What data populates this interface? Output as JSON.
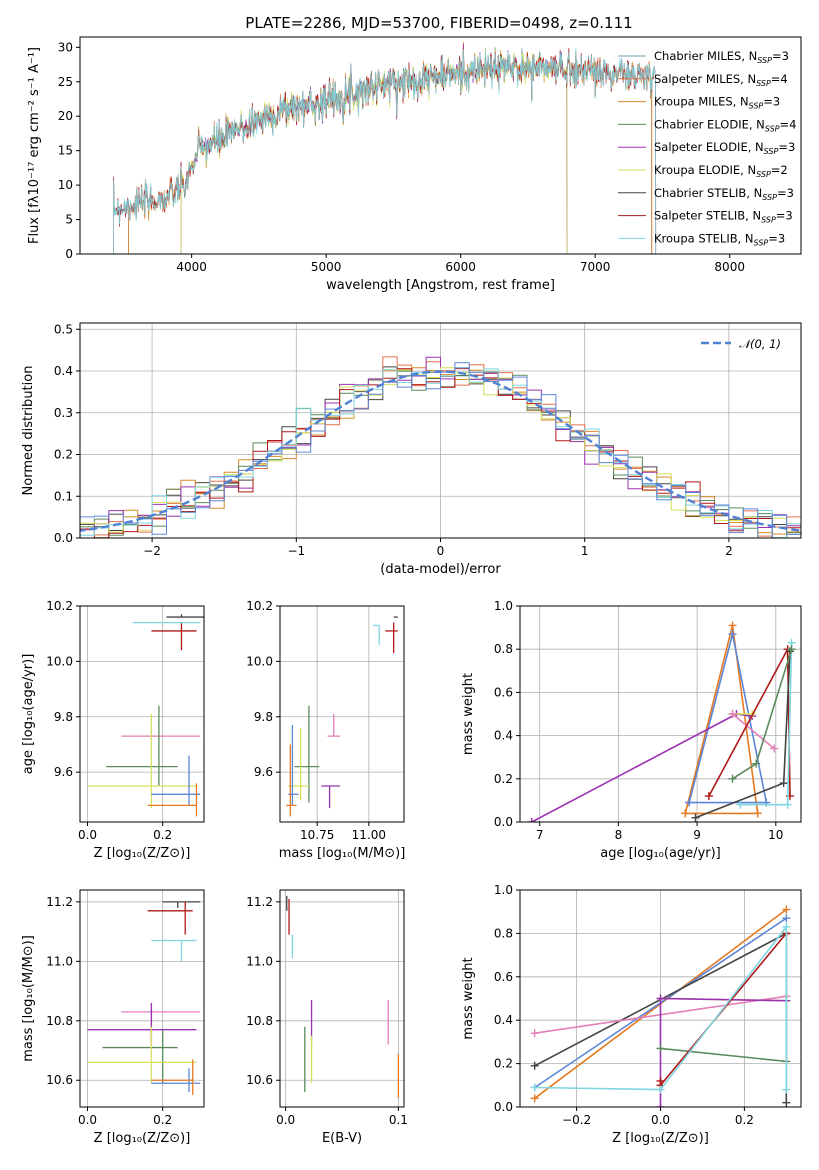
{
  "figure_title": "PLATE=2286, MJD=53700, FIBERID=0498, z=0.111",
  "colors": {
    "Chabrier MILES": "#6f9fb0",
    "Salpeter MILES": "#e4724f",
    "Kroupa MILES": "#d98a2b",
    "Chabrier ELODIE": "#5a8a5a",
    "Salpeter ELODIE": "#9b32b4",
    "Kroupa ELODIE": "#d6e05a",
    "Chabrier STELIB": "#444444",
    "Salpeter STELIB": "#b01818",
    "Kroupa STELIB": "#7fd6e0",
    "pink": "#e47fb8",
    "blue": "#5e86d6",
    "orange": "#e57a22",
    "gaussian": "#4f82d4"
  },
  "chart_data": [
    {
      "id": "spectrum",
      "type": "line",
      "title": "PLATE=2286, MJD=53700, FIBERID=0498, z=0.111",
      "xlabel": "wavelength [Angstrom, rest frame]",
      "ylabel": "Flux [fλ10⁻¹⁷ erg cm⁻² s⁻¹ A⁻¹]",
      "xlim": [
        3170,
        8530
      ],
      "ylim": [
        0,
        31.5
      ],
      "xticks": [
        4000,
        5000,
        6000,
        7000,
        8000
      ],
      "yticks": [
        0,
        5,
        10,
        15,
        20,
        25,
        30
      ],
      "grid": false,
      "legend_position": "right",
      "continuum": [
        [
          3400,
          6.5
        ],
        [
          3650,
          7.5
        ],
        [
          3800,
          8
        ],
        [
          3950,
          10
        ],
        [
          4050,
          15
        ],
        [
          4250,
          17
        ],
        [
          4450,
          19
        ],
        [
          4700,
          21
        ],
        [
          4950,
          22
        ],
        [
          5200,
          23.5
        ],
        [
          5400,
          24.5
        ],
        [
          5700,
          25.5
        ],
        [
          5900,
          26
        ],
        [
          6100,
          26.5
        ],
        [
          6300,
          27
        ],
        [
          6600,
          27
        ],
        [
          6900,
          26.8
        ],
        [
          7200,
          26
        ],
        [
          7450,
          25.5
        ]
      ],
      "legend": [
        {
          "label": "Chabrier MILES, N",
          "sub": "SSP",
          "eq": "=3",
          "color": "Chabrier MILES"
        },
        {
          "label": "Salpeter MILES, N",
          "sub": "SSP",
          "eq": "=4",
          "color": "Salpeter MILES"
        },
        {
          "label": "Kroupa MILES, N",
          "sub": "SSP",
          "eq": "=3",
          "color": "Kroupa MILES"
        },
        {
          "label": "Chabrier ELODIE, N",
          "sub": "SSP",
          "eq": "=4",
          "color": "Chabrier ELODIE"
        },
        {
          "label": "Salpeter ELODIE, N",
          "sub": "SSP",
          "eq": "=3",
          "color": "Salpeter ELODIE"
        },
        {
          "label": "Kroupa ELODIE, N",
          "sub": "SSP",
          "eq": "=2",
          "color": "Kroupa ELODIE"
        },
        {
          "label": "Chabrier STELIB, N",
          "sub": "SSP",
          "eq": "=3",
          "color": "Chabrier STELIB"
        },
        {
          "label": "Salpeter STELIB, N",
          "sub": "SSP",
          "eq": "=3",
          "color": "Salpeter STELIB"
        },
        {
          "label": "Kroupa STELIB, N",
          "sub": "SSP",
          "eq": "=3",
          "color": "Kroupa STELIB"
        }
      ]
    },
    {
      "id": "residuals",
      "type": "line",
      "xlabel": "(data-model)/error",
      "ylabel": "Normed distribution",
      "xlim": [
        -2.5,
        2.5
      ],
      "ylim": [
        0,
        0.515
      ],
      "xticks": [
        -2,
        -1,
        0,
        1,
        2
      ],
      "yticks": [
        0.0,
        0.1,
        0.2,
        0.3,
        0.4,
        0.5
      ],
      "grid": true,
      "legend_position": "top-right",
      "legend_label": "𝒩(0, 1)",
      "gaussian": {
        "mean": 0,
        "sigma": 1
      }
    },
    {
      "id": "age-vs-z",
      "type": "scatter",
      "xlabel": "Z [log₁₀(Z/Z⊙)]",
      "ylabel": "age  [log₁₀(age/yr)]",
      "xlim": [
        -0.02,
        0.31
      ],
      "ylim": [
        9.42,
        10.2
      ],
      "xticks": [
        0.0,
        0.2
      ],
      "yticks": [
        9.6,
        9.8,
        10.0,
        10.2
      ],
      "grid": true,
      "points": [
        {
          "x": 0.25,
          "y": 10.16,
          "xerr": [
            0.04,
            0.06
          ],
          "yerr": [
            0.0,
            0.01
          ],
          "color": "Chabrier STELIB"
        },
        {
          "x": 0.25,
          "y": 10.11,
          "xerr": [
            0.08,
            0.04
          ],
          "yerr": [
            0.07,
            0.03
          ],
          "color": "Salpeter STELIB"
        },
        {
          "x": 0.24,
          "y": 10.14,
          "xerr": [
            0.12,
            0.06
          ],
          "yerr": [
            0.0,
            0.0
          ],
          "color": "Kroupa STELIB"
        },
        {
          "x": 0.17,
          "y": 9.73,
          "xerr": [
            0.08,
            0.13
          ],
          "yerr": [
            0.0,
            0.0
          ],
          "color": "pink"
        },
        {
          "x": 0.19,
          "y": 9.62,
          "xerr": [
            0.14,
            0.05
          ],
          "yerr": [
            0.07,
            0.22
          ],
          "color": "Chabrier ELODIE"
        },
        {
          "x": 0.17,
          "y": 9.55,
          "xerr": [
            0.17,
            0.12
          ],
          "yerr": [
            0.08,
            0.26
          ],
          "color": "Kroupa ELODIE"
        },
        {
          "x": 0.27,
          "y": 9.52,
          "xerr": [
            0.1,
            0.03
          ],
          "yerr": [
            0.04,
            0.14
          ],
          "color": "blue"
        },
        {
          "x": 0.29,
          "y": 9.48,
          "xerr": [
            0.13,
            0.0
          ],
          "yerr": [
            0.04,
            0.08
          ],
          "color": "orange"
        }
      ]
    },
    {
      "id": "age-vs-mass",
      "type": "scatter",
      "xlabel": "mass [log₁₀(M/M⊙)]",
      "xlim": [
        10.57,
        11.17
      ],
      "ylim": [
        9.42,
        10.2
      ],
      "xticks": [
        10.75,
        11.0
      ],
      "yticks": [
        9.6,
        9.8,
        10.0,
        10.2
      ],
      "grid": true,
      "points": [
        {
          "x": 11.14,
          "y": 10.16,
          "xerr": [
            0.02,
            0.0
          ],
          "yerr": [
            0.0,
            0.0
          ],
          "color": "Chabrier STELIB"
        },
        {
          "x": 11.12,
          "y": 10.11,
          "xerr": [
            0.04,
            0.02
          ],
          "yerr": [
            0.08,
            0.03
          ],
          "color": "Salpeter STELIB"
        },
        {
          "x": 11.05,
          "y": 10.13,
          "xerr": [
            0.03,
            0.0
          ],
          "yerr": [
            0.07,
            0.0
          ],
          "color": "Kroupa STELIB"
        },
        {
          "x": 10.83,
          "y": 9.73,
          "xerr": [
            0.03,
            0.03
          ],
          "yerr": [
            0.0,
            0.08
          ],
          "color": "pink"
        },
        {
          "x": 10.81,
          "y": 9.55,
          "xerr": [
            0.04,
            0.05
          ],
          "yerr": [
            0.08,
            0.0
          ],
          "color": "Salpeter ELODIE"
        },
        {
          "x": 10.71,
          "y": 9.62,
          "xerr": [
            0.07,
            0.05
          ],
          "yerr": [
            0.13,
            0.22
          ],
          "color": "Chabrier ELODIE"
        },
        {
          "x": 10.67,
          "y": 9.55,
          "xerr": [
            0.06,
            0.04
          ],
          "yerr": [
            0.05,
            0.21
          ],
          "color": "Kroupa ELODIE"
        },
        {
          "x": 10.63,
          "y": 9.52,
          "xerr": [
            0.02,
            0.03
          ],
          "yerr": [
            0.04,
            0.25
          ],
          "color": "blue"
        },
        {
          "x": 10.62,
          "y": 9.48,
          "xerr": [
            0.02,
            0.03
          ],
          "yerr": [
            0.04,
            0.22
          ],
          "color": "orange"
        }
      ]
    },
    {
      "id": "weight-vs-age",
      "type": "line",
      "xlabel": "age  [log₁₀(age/yr)]",
      "ylabel": "mass weight",
      "xlim": [
        6.75,
        10.32
      ],
      "ylim": [
        0,
        1.0
      ],
      "xticks": [
        7,
        8,
        9,
        10
      ],
      "yticks": [
        0.0,
        0.2,
        0.4,
        0.6,
        0.8,
        1.0
      ],
      "grid": true,
      "series": [
        {
          "color": "orange",
          "x": [
            8.85,
            9.45,
            9.77,
            8.85
          ],
          "y": [
            0.04,
            0.91,
            0.04,
            0.04
          ]
        },
        {
          "color": "blue",
          "x": [
            8.9,
            9.45,
            9.88,
            8.9
          ],
          "y": [
            0.09,
            0.87,
            0.09,
            0.09
          ]
        },
        {
          "color": "Salpeter ELODIE",
          "x": [
            6.9,
            9.5,
            9.7
          ],
          "y": [
            0.0,
            0.5,
            0.49
          ]
        },
        {
          "color": "Kroupa ELODIE",
          "x": [
            9.45,
            9.7
          ],
          "y": [
            0.5,
            0.5
          ]
        },
        {
          "color": "pink",
          "x": [
            9.45,
            9.98
          ],
          "y": [
            0.5,
            0.34
          ]
        },
        {
          "color": "Salpeter STELIB",
          "x": [
            9.15,
            10.15,
            10.18
          ],
          "y": [
            0.12,
            0.8,
            0.12
          ]
        },
        {
          "color": "Chabrier STELIB",
          "x": [
            8.98,
            10.1,
            10.18
          ],
          "y": [
            0.02,
            0.18,
            0.79
          ]
        },
        {
          "color": "Kroupa STELIB",
          "x": [
            9.55,
            10.15,
            10.2
          ],
          "y": [
            0.08,
            0.08,
            0.83
          ]
        },
        {
          "color": "Chabrier ELODIE",
          "x": [
            9.45,
            9.75,
            10.2
          ],
          "y": [
            0.2,
            0.27,
            0.8
          ]
        }
      ]
    },
    {
      "id": "mass-vs-z",
      "type": "scatter",
      "xlabel": "Z [log₁₀(Z/Z⊙)]",
      "ylabel": "mass [log₁₀(M/M⊙)]",
      "xlim": [
        -0.02,
        0.31
      ],
      "ylim": [
        10.51,
        11.24
      ],
      "xticks": [
        0.0,
        0.2
      ],
      "yticks": [
        10.6,
        10.8,
        11.0,
        11.2
      ],
      "grid": true,
      "points": [
        {
          "x": 0.24,
          "y": 11.2,
          "xerr": [
            0.04,
            0.06
          ],
          "yerr": [
            0.02,
            0.0
          ],
          "color": "Chabrier STELIB"
        },
        {
          "x": 0.26,
          "y": 11.17,
          "xerr": [
            0.1,
            0.02
          ],
          "yerr": [
            0.08,
            0.03
          ],
          "color": "Salpeter STELIB"
        },
        {
          "x": 0.25,
          "y": 11.07,
          "xerr": [
            0.08,
            0.04
          ],
          "yerr": [
            0.07,
            0.0
          ],
          "color": "Kroupa STELIB"
        },
        {
          "x": 0.17,
          "y": 10.83,
          "xerr": [
            0.08,
            0.13
          ],
          "yerr": [
            0.1,
            0.03
          ],
          "color": "pink"
        },
        {
          "x": 0.17,
          "y": 10.77,
          "xerr": [
            0.17,
            0.12
          ],
          "yerr": [
            0.05,
            0.09
          ],
          "color": "Salpeter ELODIE"
        },
        {
          "x": 0.2,
          "y": 10.71,
          "xerr": [
            0.16,
            0.04
          ],
          "yerr": [
            0.12,
            0.06
          ],
          "color": "Chabrier ELODIE"
        },
        {
          "x": 0.17,
          "y": 10.66,
          "xerr": [
            0.17,
            0.12
          ],
          "yerr": [
            0.07,
            0.12
          ],
          "color": "Kroupa ELODIE"
        },
        {
          "x": 0.27,
          "y": 10.59,
          "xerr": [
            0.1,
            0.03
          ],
          "yerr": [
            0.03,
            0.05
          ],
          "color": "blue"
        },
        {
          "x": 0.28,
          "y": 10.6,
          "xerr": [
            0.11,
            0.0
          ],
          "yerr": [
            0.05,
            0.07
          ],
          "color": "orange"
        }
      ]
    },
    {
      "id": "mass-vs-ebv",
      "type": "scatter",
      "xlabel": "E(B-V)",
      "xlim": [
        -0.005,
        0.105
      ],
      "ylim": [
        10.51,
        11.24
      ],
      "xticks": [
        0.0,
        0.1
      ],
      "yticks": [
        10.6,
        10.8,
        11.0,
        11.2
      ],
      "grid": true,
      "points": [
        {
          "x": 0.001,
          "y": 11.2,
          "xerr": [
            0,
            0
          ],
          "yerr": [
            0.03,
            0.02
          ],
          "color": "Chabrier STELIB"
        },
        {
          "x": 0.003,
          "y": 11.17,
          "xerr": [
            0,
            0
          ],
          "yerr": [
            0.08,
            0.04
          ],
          "color": "Salpeter STELIB"
        },
        {
          "x": 0.006,
          "y": 11.06,
          "xerr": [
            0,
            0
          ],
          "yerr": [
            0.05,
            0.03
          ],
          "color": "Kroupa STELIB"
        },
        {
          "x": 0.017,
          "y": 10.7,
          "xerr": [
            0,
            0
          ],
          "yerr": [
            0.14,
            0.08
          ],
          "color": "Chabrier ELODIE"
        },
        {
          "x": 0.023,
          "y": 10.8,
          "xerr": [
            0,
            0
          ],
          "yerr": [
            0.07,
            0.07
          ],
          "color": "Salpeter ELODIE"
        },
        {
          "x": 0.023,
          "y": 10.7,
          "xerr": [
            0,
            0
          ],
          "yerr": [
            0.11,
            0.05
          ],
          "color": "Kroupa ELODIE"
        },
        {
          "x": 0.091,
          "y": 10.8,
          "xerr": [
            0,
            0
          ],
          "yerr": [
            0.08,
            0.07
          ],
          "color": "pink"
        },
        {
          "x": 0.1,
          "y": 10.6,
          "xerr": [
            0,
            0
          ],
          "yerr": [
            0.06,
            0.09
          ],
          "color": "orange"
        }
      ]
    },
    {
      "id": "weight-vs-z",
      "type": "line",
      "xlabel": "Z [log₁₀(Z/Z⊙)]",
      "ylabel": "mass weight",
      "xlim": [
        -0.335,
        0.335
      ],
      "ylim": [
        0,
        1.0
      ],
      "xticks": [
        -0.2,
        0.0,
        0.2
      ],
      "yticks": [
        0.0,
        0.2,
        0.4,
        0.6,
        0.8,
        1.0
      ],
      "grid": true,
      "series": [
        {
          "color": "orange",
          "x": [
            -0.3,
            0.3
          ],
          "y": [
            0.04,
            0.91
          ]
        },
        {
          "color": "blue",
          "x": [
            -0.3,
            0.3
          ],
          "y": [
            0.09,
            0.87
          ]
        },
        {
          "color": "Chabrier STELIB",
          "x": [
            -0.3,
            0.3,
            0.3
          ],
          "y": [
            0.19,
            0.8,
            0.02
          ]
        },
        {
          "color": "pink",
          "x": [
            -0.3,
            0.3
          ],
          "y": [
            0.34,
            0.51
          ]
        },
        {
          "color": "Kroupa ELODIE",
          "x": [
            0.0,
            0.3
          ],
          "y": [
            0.5,
            0.49
          ]
        },
        {
          "color": "Salpeter ELODIE",
          "x": [
            0.0,
            0.0,
            0.3
          ],
          "y": [
            0.0,
            0.5,
            0.49
          ]
        },
        {
          "color": "Chabrier ELODIE",
          "x": [
            0.0,
            0.3,
            0.3
          ],
          "y": [
            0.27,
            0.21,
            0.8
          ]
        },
        {
          "color": "Salpeter STELIB",
          "x": [
            0.0,
            0.0,
            0.3
          ],
          "y": [
            0.12,
            0.1,
            0.8
          ]
        },
        {
          "color": "Kroupa STELIB",
          "x": [
            -0.3,
            0.0,
            0.3,
            0.3
          ],
          "y": [
            0.09,
            0.08,
            0.83,
            0.08
          ]
        }
      ]
    }
  ]
}
